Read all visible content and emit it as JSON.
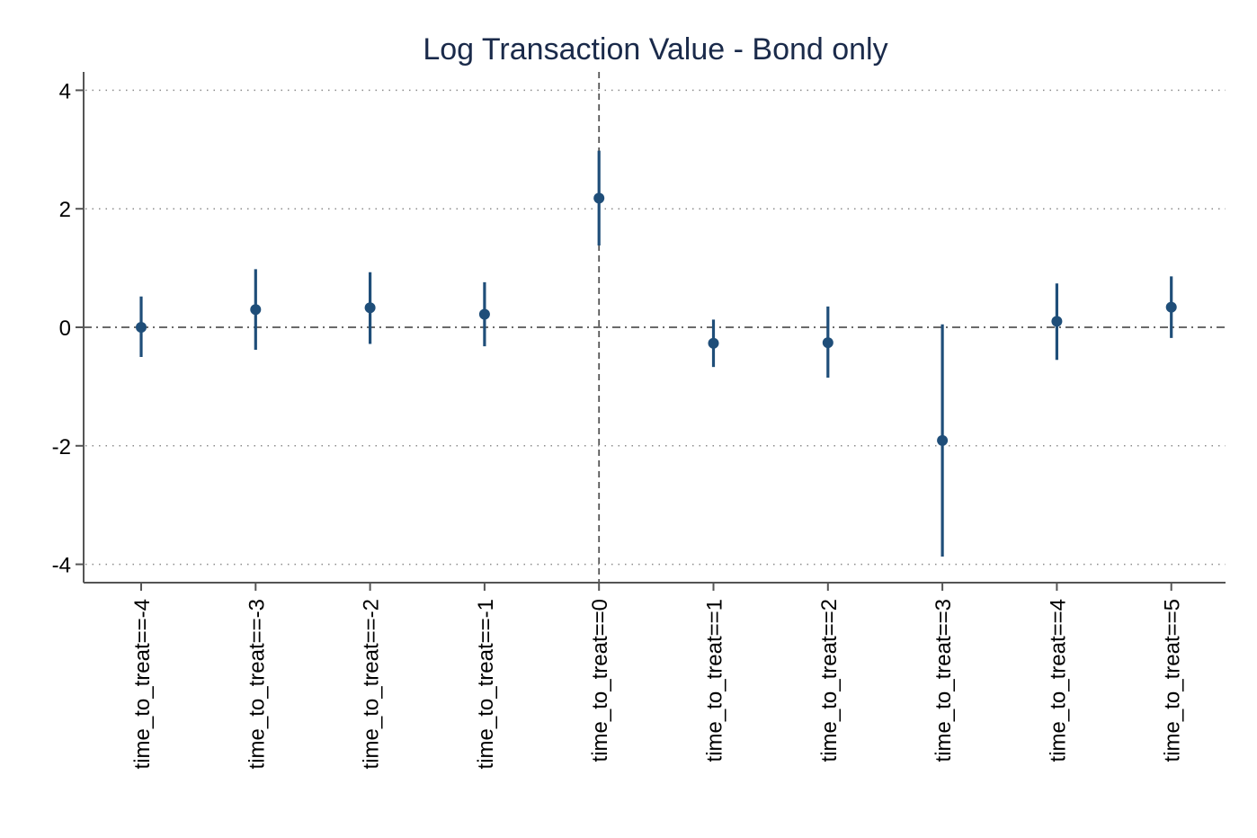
{
  "chart_data": {
    "type": "scatter",
    "subtype": "coefficient-plot",
    "title": "Log Transaction Value - Bond only",
    "xlabel": "",
    "ylabel": "",
    "categories": [
      "time_to_treat==-4",
      "time_to_treat==-3",
      "time_to_treat==-2",
      "time_to_treat==-1",
      "time_to_treat==0",
      "time_to_treat==1",
      "time_to_treat==2",
      "time_to_treat==3",
      "time_to_treat==4",
      "time_to_treat==5"
    ],
    "values": [
      0.0,
      0.3,
      0.33,
      0.22,
      2.18,
      -0.27,
      -0.26,
      -1.91,
      0.1,
      0.34
    ],
    "ci_low": [
      -0.5,
      -0.38,
      -0.28,
      -0.32,
      1.38,
      -0.67,
      -0.85,
      -3.87,
      -0.55,
      -0.18
    ],
    "ci_high": [
      0.52,
      0.98,
      0.93,
      0.76,
      2.98,
      0.13,
      0.35,
      0.05,
      0.74,
      0.86
    ],
    "ylim": [
      -4.3,
      4.3
    ],
    "yticks": [
      -4,
      -2,
      0,
      2,
      4
    ],
    "ytick_labels": [
      "-4",
      "-2",
      "0",
      "2",
      "4"
    ],
    "reference_lines": {
      "y": 0,
      "x_category": "time_to_treat==0"
    },
    "grid": "horizontal dotted",
    "legend": "none",
    "colors": {
      "marker": "#1f4e79",
      "axis": "#555555",
      "reference": "#555555",
      "grid": "#8c8c8c",
      "title": "#1a2a4a"
    }
  }
}
